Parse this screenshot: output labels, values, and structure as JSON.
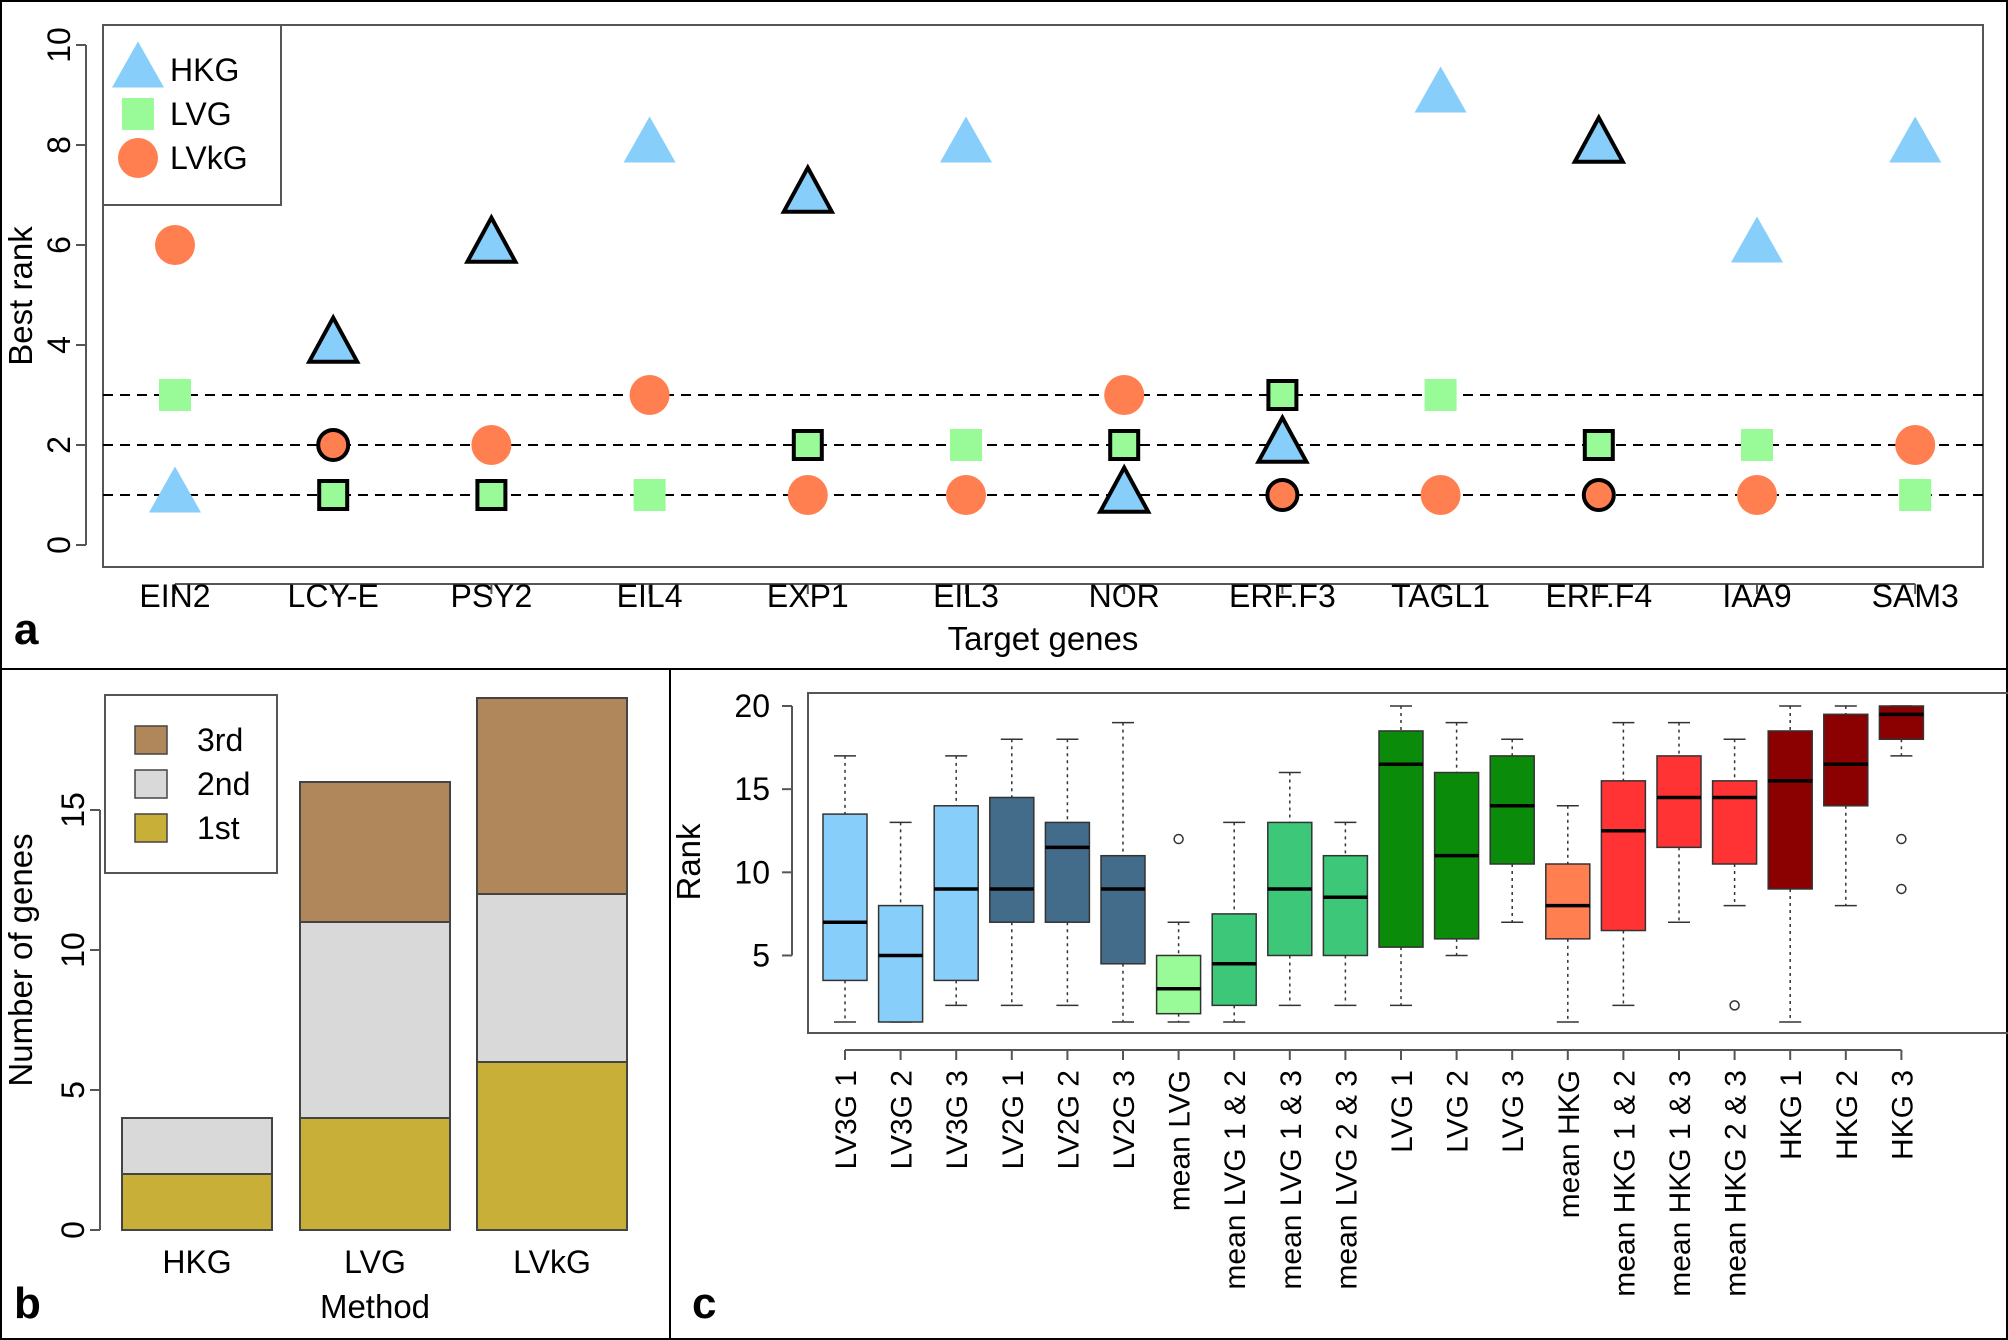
{
  "panels": {
    "a": {
      "letter": "a"
    },
    "b": {
      "letter": "b"
    },
    "c": {
      "letter": "c"
    }
  },
  "colors": {
    "HKG": "#87cefa",
    "LVG": "#98fb98",
    "LVkG": "#ff7f50",
    "third": "#b0875a",
    "second": "#d9d9d9",
    "first": "#c8af37"
  },
  "chart_data": [
    {
      "id": "a",
      "type": "scatter",
      "title": "",
      "xlabel": "Target genes",
      "ylabel": "Best rank",
      "ylim": [
        0,
        10
      ],
      "yticks": [
        0,
        2,
        4,
        6,
        8,
        10
      ],
      "reference_lines": [
        1,
        2,
        3
      ],
      "legend": {
        "placement": "top-left",
        "entries": [
          "HKG",
          "LVG",
          "LVkG"
        ]
      },
      "categories": [
        "EIN2",
        "LCY-E",
        "PSY2",
        "EIL4",
        "EXP1",
        "EIL3",
        "NOR",
        "ERF.F3",
        "TAGL1",
        "ERF.F4",
        "IAA9",
        "SAM3"
      ],
      "series": [
        {
          "name": "HKG",
          "marker": "triangle",
          "values": [
            1,
            4,
            6,
            8,
            7,
            8,
            1,
            2,
            9,
            8,
            6,
            8
          ],
          "outlined": [
            false,
            true,
            true,
            false,
            true,
            false,
            true,
            true,
            false,
            true,
            false,
            false
          ]
        },
        {
          "name": "LVG",
          "marker": "square",
          "values": [
            3,
            1,
            1,
            1,
            2,
            2,
            2,
            3,
            3,
            2,
            2,
            1
          ],
          "outlined": [
            false,
            true,
            true,
            false,
            true,
            false,
            true,
            true,
            false,
            true,
            false,
            false
          ]
        },
        {
          "name": "LVkG",
          "marker": "circle",
          "values": [
            6,
            2,
            2,
            3,
            1,
            1,
            3,
            1,
            1,
            1,
            1,
            2
          ],
          "outlined": [
            false,
            true,
            false,
            false,
            false,
            false,
            false,
            true,
            false,
            true,
            false,
            false
          ]
        }
      ]
    },
    {
      "id": "b",
      "type": "bar",
      "stacked": true,
      "title": "",
      "xlabel": "Method",
      "ylabel": "Number of genes",
      "ylim": [
        0,
        19
      ],
      "yticks": [
        0,
        5,
        10,
        15
      ],
      "categories": [
        "HKG",
        "LVG",
        "LVkG"
      ],
      "legend": {
        "placement": "top-left",
        "entries": [
          "3rd",
          "2nd",
          "1st"
        ]
      },
      "series": [
        {
          "name": "1st",
          "values": [
            2,
            4,
            6
          ]
        },
        {
          "name": "2nd",
          "values": [
            2,
            7,
            6
          ]
        },
        {
          "name": "3rd",
          "values": [
            0,
            5,
            7
          ]
        }
      ]
    },
    {
      "id": "c",
      "type": "box",
      "title": "",
      "xlabel": "",
      "ylabel": "Rank",
      "ylim": [
        1,
        20
      ],
      "yticks": [
        5,
        10,
        15,
        20
      ],
      "boxes": [
        {
          "label": "LV3G 1",
          "min": 1,
          "q1": 3.5,
          "median": 7,
          "q3": 13.5,
          "max": 17,
          "outliers": [],
          "color": "#87cefa"
        },
        {
          "label": "LV3G 2",
          "min": 1,
          "q1": 1,
          "median": 5,
          "q3": 8,
          "max": 13,
          "outliers": [],
          "color": "#87cefa"
        },
        {
          "label": "LV3G 3",
          "min": 2,
          "q1": 3.5,
          "median": 9,
          "q3": 14,
          "max": 17,
          "outliers": [],
          "color": "#87cefa"
        },
        {
          "label": "LV2G 1",
          "min": 2,
          "q1": 7,
          "median": 9,
          "q3": 14.5,
          "max": 18,
          "outliers": [],
          "color": "#436c8b"
        },
        {
          "label": "LV2G 2",
          "min": 2,
          "q1": 7,
          "median": 11.5,
          "q3": 13,
          "max": 18,
          "outliers": [],
          "color": "#436c8b"
        },
        {
          "label": "LV2G 3",
          "min": 1,
          "q1": 4.5,
          "median": 9,
          "q3": 11,
          "max": 19,
          "outliers": [],
          "color": "#436c8b"
        },
        {
          "label": "mean LVG",
          "min": 1,
          "q1": 1.5,
          "median": 3,
          "q3": 5,
          "max": 7,
          "outliers": [
            12
          ],
          "color": "#98fb98"
        },
        {
          "label": "mean LVG 1 & 2",
          "min": 1,
          "q1": 2,
          "median": 4.5,
          "q3": 7.5,
          "max": 13,
          "outliers": [],
          "color": "#3cc878"
        },
        {
          "label": "mean LVG 1 & 3",
          "min": 2,
          "q1": 5,
          "median": 9,
          "q3": 13,
          "max": 16,
          "outliers": [],
          "color": "#3cc878"
        },
        {
          "label": "mean LVG 2 & 3",
          "min": 2,
          "q1": 5,
          "median": 8.5,
          "q3": 11,
          "max": 13,
          "outliers": [],
          "color": "#3cc878"
        },
        {
          "label": "LVG 1",
          "min": 2,
          "q1": 5.5,
          "median": 16.5,
          "q3": 18.5,
          "max": 20,
          "outliers": [],
          "color": "#0a8c0a"
        },
        {
          "label": "LVG 2",
          "min": 5,
          "q1": 6,
          "median": 11,
          "q3": 16,
          "max": 19,
          "outliers": [],
          "color": "#0a8c0a"
        },
        {
          "label": "LVG 3",
          "min": 7,
          "q1": 10.5,
          "median": 14,
          "q3": 17,
          "max": 18,
          "outliers": [],
          "color": "#0a8c0a"
        },
        {
          "label": "mean HKG",
          "min": 1,
          "q1": 6,
          "median": 8,
          "q3": 10.5,
          "max": 14,
          "outliers": [],
          "color": "#ff7f50"
        },
        {
          "label": "mean HKG 1 & 2",
          "min": 2,
          "q1": 6.5,
          "median": 12.5,
          "q3": 15.5,
          "max": 19,
          "outliers": [],
          "color": "#ff3333"
        },
        {
          "label": "mean HKG 1 & 3",
          "min": 7,
          "q1": 11.5,
          "median": 14.5,
          "q3": 17,
          "max": 19,
          "outliers": [],
          "color": "#ff3333"
        },
        {
          "label": "mean HKG 2 & 3",
          "min": 8,
          "q1": 10.5,
          "median": 14.5,
          "q3": 15.5,
          "max": 18,
          "outliers": [
            2
          ],
          "color": "#ff3333"
        },
        {
          "label": "HKG 1",
          "min": 1,
          "q1": 9,
          "median": 15.5,
          "q3": 18.5,
          "max": 20,
          "outliers": [],
          "color": "#8b0000"
        },
        {
          "label": "HKG 2",
          "min": 8,
          "q1": 14,
          "median": 16.5,
          "q3": 19.5,
          "max": 20,
          "outliers": [],
          "color": "#8b0000"
        },
        {
          "label": "HKG 3",
          "min": 17,
          "q1": 18,
          "median": 19.5,
          "q3": 20,
          "max": 20,
          "outliers": [
            12,
            9
          ],
          "color": "#8b0000"
        }
      ]
    }
  ]
}
